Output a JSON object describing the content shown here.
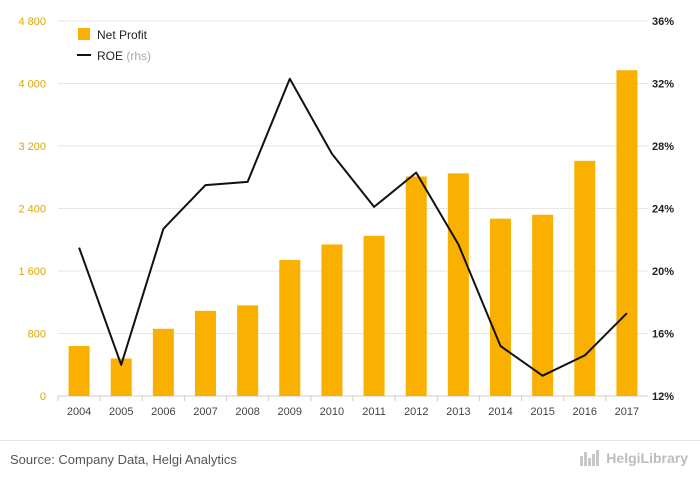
{
  "chart_data": {
    "type": "bar+line",
    "categories": [
      "2004",
      "2005",
      "2006",
      "2007",
      "2008",
      "2009",
      "2010",
      "2011",
      "2012",
      "2013",
      "2014",
      "2015",
      "2016",
      "2017"
    ],
    "series": [
      {
        "name": "Net Profit",
        "kind": "bar",
        "axis": "left",
        "values": [
          640,
          480,
          860,
          1090,
          1160,
          1740,
          1940,
          2050,
          2810,
          2850,
          2270,
          2320,
          3010,
          4170
        ]
      },
      {
        "name": "ROE",
        "name_suffix": "(rhs)",
        "kind": "line",
        "axis": "right",
        "values": [
          21.5,
          14.0,
          22.7,
          25.5,
          25.7,
          32.3,
          27.5,
          24.1,
          26.3,
          21.7,
          15.2,
          13.3,
          14.6,
          17.3
        ]
      }
    ],
    "y_left": {
      "ylim": [
        0,
        4800
      ],
      "ticks": [
        0,
        800,
        1600,
        2400,
        3200,
        4000,
        4800
      ],
      "tick_labels": [
        "0",
        "800",
        "1 600",
        "2 400",
        "3 200",
        "4 000",
        "4 800"
      ]
    },
    "y_right": {
      "ylim": [
        12,
        36
      ],
      "ticks": [
        12,
        16,
        20,
        24,
        28,
        32,
        36
      ],
      "tick_labels": [
        "12%",
        "16%",
        "20%",
        "24%",
        "28%",
        "32%",
        "36%"
      ]
    },
    "grid": true,
    "legend_position": "top-left",
    "colors": {
      "bar": "#f9b000",
      "line": "#111111",
      "left_ticks": "#e0a500",
      "right_ticks": "#222222",
      "grid": "#e6e6e6"
    }
  },
  "footer": {
    "source": "Source: Company Data, Helgi Analytics",
    "brand": "HelgiLibrary"
  }
}
